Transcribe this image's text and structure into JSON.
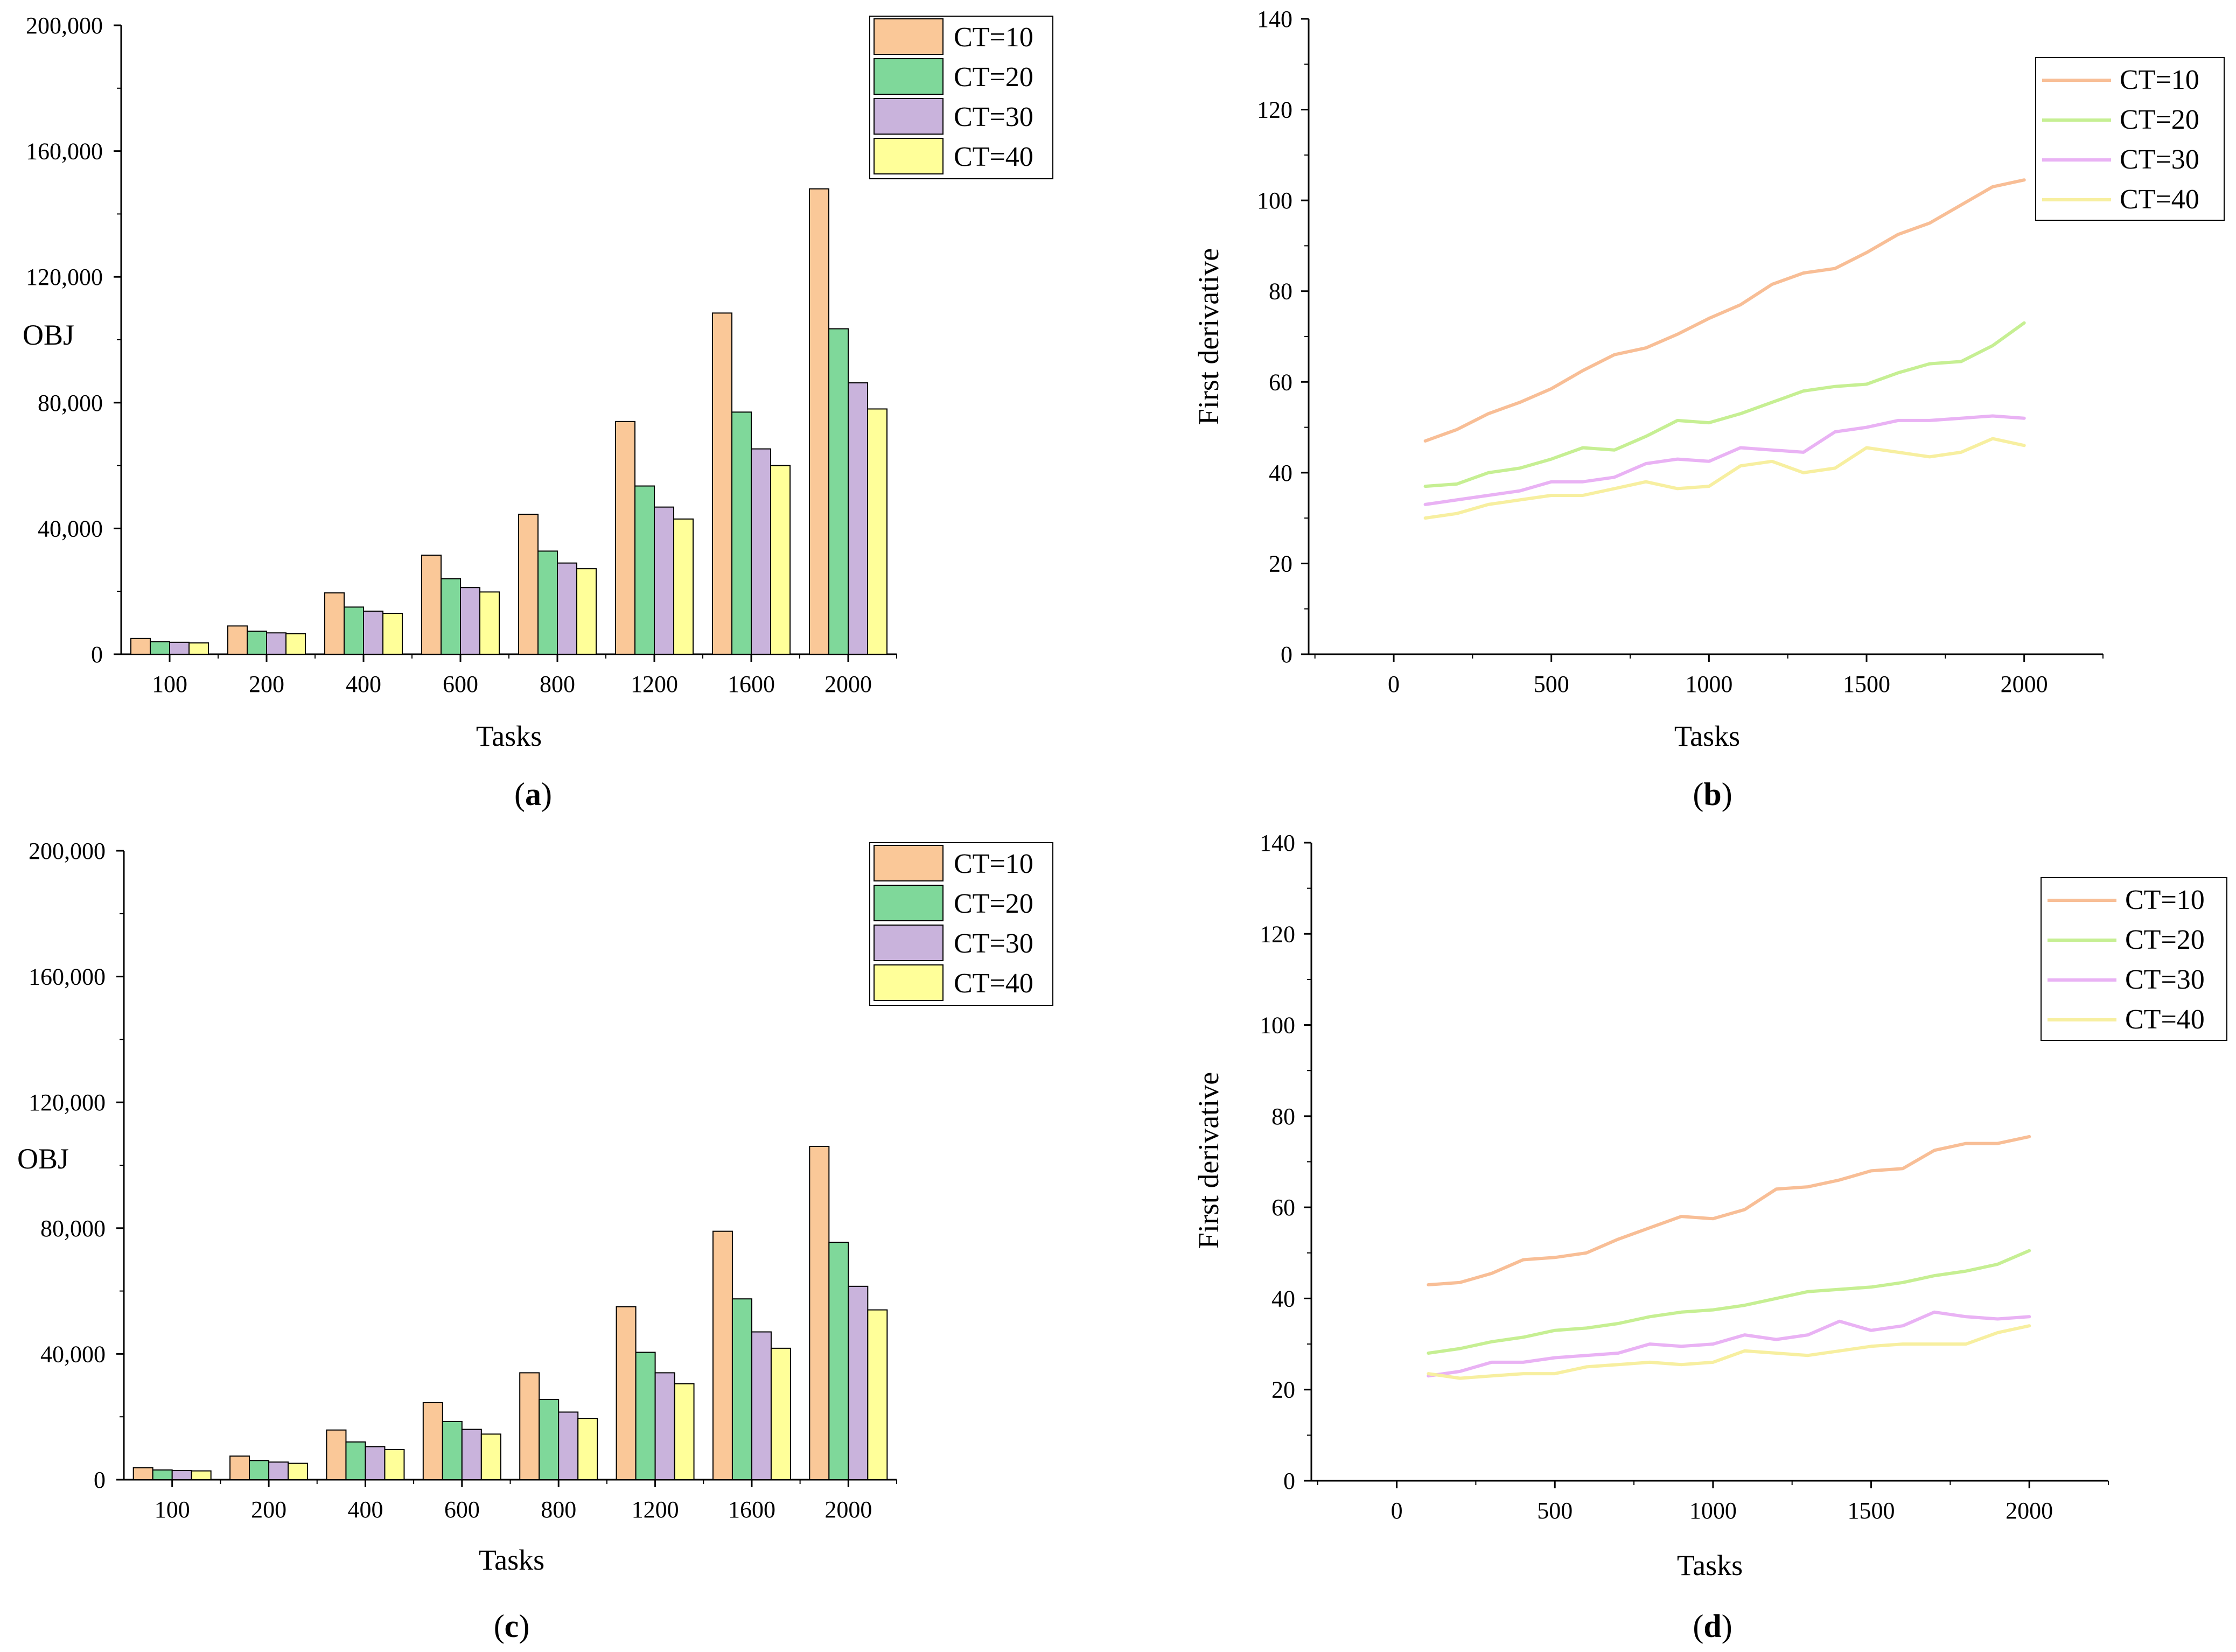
{
  "colors": {
    "bars": [
      "#FAC898",
      "#7FD89A",
      "#C9B3DC",
      "#FFFF99"
    ],
    "lines": [
      "#F8BE96",
      "#C6EF93",
      "#E9B2F4",
      "#F7EFA0"
    ]
  },
  "chart_data": [
    {
      "id": "a",
      "type": "bar",
      "caption": {
        "open": "(",
        "letter": "a",
        "close": ")"
      },
      "xlabel": "Tasks",
      "ylabel": "OBJ",
      "categories": [
        "100",
        "200",
        "400",
        "600",
        "800",
        "1200",
        "1600",
        "2000"
      ],
      "ylim": [
        0,
        200000
      ],
      "yticks": [
        0,
        40000,
        80000,
        120000,
        160000,
        200000
      ],
      "ytick_labels": [
        "0",
        "40,000",
        "80,000",
        "120,000",
        "160,000",
        "200,000"
      ],
      "series": [
        {
          "name": "CT=10",
          "values": [
            5000,
            9000,
            19500,
            31500,
            44500,
            74000,
            108500,
            148000
          ]
        },
        {
          "name": "CT=20",
          "values": [
            4000,
            7300,
            15000,
            24000,
            32800,
            53500,
            77000,
            103500
          ]
        },
        {
          "name": "CT=30",
          "values": [
            3800,
            6800,
            13700,
            21200,
            29000,
            46800,
            65300,
            86300
          ]
        },
        {
          "name": "CT=40",
          "values": [
            3600,
            6500,
            13000,
            19800,
            27200,
            43000,
            60000,
            78000
          ]
        }
      ],
      "legend_position": "top-right"
    },
    {
      "id": "b",
      "type": "line",
      "caption": {
        "open": "(",
        "letter": "b",
        "close": ")"
      },
      "xlabel": "Tasks",
      "ylabel": "First derivative",
      "xlim": [
        -270,
        2250
      ],
      "ylim": [
        0,
        140
      ],
      "xticks": [
        0,
        500,
        1000,
        1500,
        2000
      ],
      "yticks": [
        0,
        20,
        40,
        60,
        80,
        100,
        120,
        140
      ],
      "x": [
        100,
        200,
        300,
        400,
        500,
        600,
        700,
        800,
        900,
        1000,
        1100,
        1200,
        1300,
        1400,
        1500,
        1600,
        1700,
        1800,
        1900,
        2000
      ],
      "series": [
        {
          "name": "CT=10",
          "values": [
            47,
            49.5,
            53,
            55.5,
            58.5,
            62.5,
            66,
            67.5,
            70.5,
            74,
            77,
            81.5,
            84,
            85,
            88.5,
            92.5,
            95,
            99,
            103,
            104.5
          ]
        },
        {
          "name": "CT=20",
          "values": [
            37,
            37.5,
            40,
            41,
            43,
            45.5,
            45,
            48,
            51.5,
            51,
            53,
            55.5,
            58,
            59,
            59.5,
            62,
            64,
            64.5,
            68,
            73
          ]
        },
        {
          "name": "CT=30",
          "values": [
            33,
            34,
            35,
            36,
            38,
            38,
            39,
            42,
            43,
            42.5,
            45.5,
            45,
            44.5,
            49,
            50,
            51.5,
            51.5,
            52,
            52.5,
            52
          ]
        },
        {
          "name": "CT=40",
          "values": [
            30,
            31,
            33,
            34,
            35,
            35,
            36.5,
            38,
            36.5,
            37,
            41.5,
            42.5,
            40,
            41,
            45.5,
            44.5,
            43.5,
            44.5,
            47.5,
            46
          ]
        }
      ],
      "legend_position": "top-right"
    },
    {
      "id": "c",
      "type": "bar",
      "caption": {
        "open": "(",
        "letter": "c",
        "close": ")"
      },
      "xlabel": "Tasks",
      "ylabel": "OBJ",
      "categories": [
        "100",
        "200",
        "400",
        "600",
        "800",
        "1200",
        "1600",
        "2000"
      ],
      "ylim": [
        0,
        200000
      ],
      "yticks": [
        0,
        40000,
        80000,
        120000,
        160000,
        200000
      ],
      "ytick_labels": [
        "0",
        "40,000",
        "80,000",
        "120,000",
        "160,000",
        "200,000"
      ],
      "series": [
        {
          "name": "CT=10",
          "values": [
            3800,
            7500,
            15800,
            24500,
            34000,
            55000,
            79000,
            106000
          ]
        },
        {
          "name": "CT=20",
          "values": [
            3100,
            6100,
            12000,
            18500,
            25500,
            40500,
            57500,
            75500
          ]
        },
        {
          "name": "CT=30",
          "values": [
            2900,
            5600,
            10500,
            16000,
            21500,
            34000,
            47000,
            61500
          ]
        },
        {
          "name": "CT=40",
          "values": [
            2800,
            5200,
            9600,
            14500,
            19500,
            30500,
            41800,
            54000
          ]
        }
      ],
      "legend_position": "top-right"
    },
    {
      "id": "d",
      "type": "line",
      "caption": {
        "open": "(",
        "letter": "d",
        "close": ")"
      },
      "xlabel": "Tasks",
      "ylabel": "First derivative",
      "xlim": [
        -270,
        2250
      ],
      "ylim": [
        0,
        140
      ],
      "xticks": [
        0,
        500,
        1000,
        1500,
        2000
      ],
      "yticks": [
        0,
        20,
        40,
        60,
        80,
        100,
        120,
        140
      ],
      "x": [
        100,
        200,
        300,
        400,
        500,
        600,
        700,
        800,
        900,
        1000,
        1100,
        1200,
        1300,
        1400,
        1500,
        1600,
        1700,
        1800,
        1900,
        2000
      ],
      "series": [
        {
          "name": "CT=10",
          "values": [
            43,
            43.5,
            45.5,
            48.5,
            49,
            50,
            53,
            55.5,
            58,
            57.5,
            59.5,
            64,
            64.5,
            66,
            68,
            68.5,
            72.5,
            74,
            74,
            75.5
          ]
        },
        {
          "name": "CT=20",
          "values": [
            28,
            29,
            30.5,
            31.5,
            33,
            33.5,
            34.5,
            36,
            37,
            37.5,
            38.5,
            40,
            41.5,
            42,
            42.5,
            43.5,
            45,
            46,
            47.5,
            50.5
          ]
        },
        {
          "name": "CT=30",
          "values": [
            23,
            24,
            26,
            26,
            27,
            27.5,
            28,
            30,
            29.5,
            30,
            32,
            31,
            32,
            35,
            33,
            34,
            37,
            36,
            35.5,
            36
          ]
        },
        {
          "name": "CT=40",
          "values": [
            23.5,
            22.5,
            23,
            23.5,
            23.5,
            25,
            25.5,
            26,
            25.5,
            26,
            28.5,
            28,
            27.5,
            28.5,
            29.5,
            30,
            30,
            30,
            32.5,
            34
          ]
        }
      ],
      "legend_position": "top-right"
    }
  ]
}
